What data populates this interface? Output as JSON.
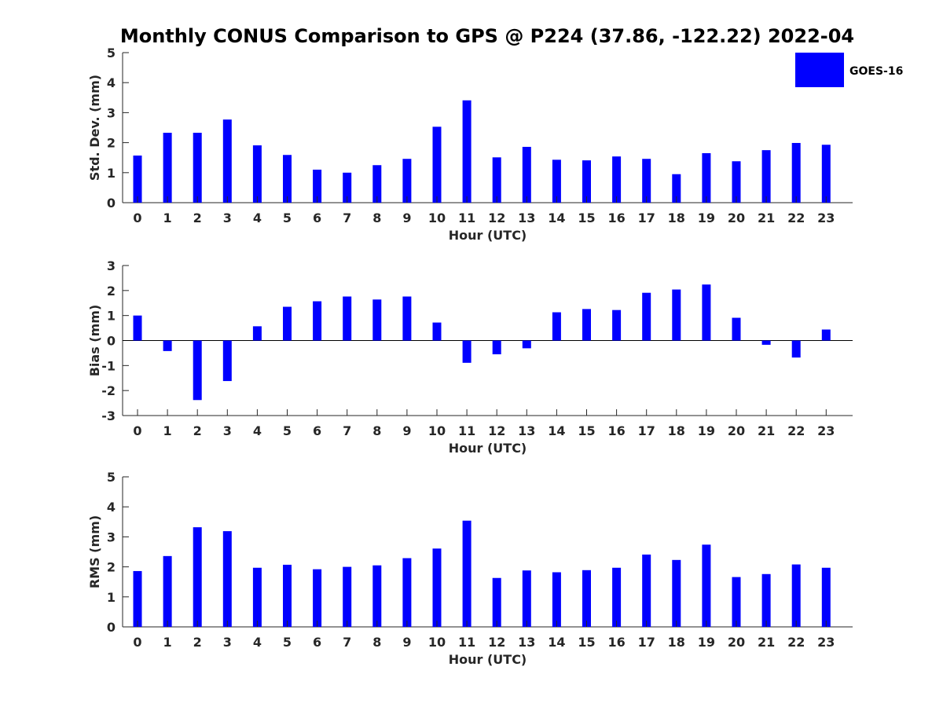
{
  "chart_data": {
    "title": "Monthly CONUS Comparison to GPS @ P224 (37.86, -122.22) 2022-04",
    "legend": {
      "label": "GOES-16",
      "color": "#0000ff",
      "placement": "top-right"
    },
    "subplots": [
      {
        "type": "bar",
        "xlabel": "Hour (UTC)",
        "ylabel": "Std. Dev. (mm)",
        "ylim": [
          0,
          5
        ],
        "yticks": [
          "0",
          "1",
          "2",
          "3",
          "4",
          "5"
        ],
        "categories": [
          "0",
          "1",
          "2",
          "3",
          "4",
          "5",
          "6",
          "7",
          "8",
          "9",
          "10",
          "11",
          "12",
          "13",
          "14",
          "15",
          "16",
          "17",
          "18",
          "19",
          "20",
          "21",
          "22",
          "23"
        ],
        "values": [
          1.57,
          2.33,
          2.33,
          2.77,
          1.91,
          1.59,
          1.1,
          1.0,
          1.25,
          1.46,
          2.53,
          3.41,
          1.51,
          1.86,
          1.43,
          1.41,
          1.54,
          1.46,
          0.95,
          1.65,
          1.38,
          1.75,
          1.99,
          1.93
        ]
      },
      {
        "type": "bar",
        "xlabel": "Hour (UTC)",
        "ylabel": "Bias (mm)",
        "ylim": [
          -3,
          3
        ],
        "yticks": [
          "-3",
          "-2",
          "-1",
          "0",
          "1",
          "2",
          "3"
        ],
        "categories": [
          "0",
          "1",
          "2",
          "3",
          "4",
          "5",
          "6",
          "7",
          "8",
          "9",
          "10",
          "11",
          "12",
          "13",
          "14",
          "15",
          "16",
          "17",
          "18",
          "19",
          "20",
          "21",
          "22",
          "23"
        ],
        "values": [
          1.0,
          -0.42,
          -2.38,
          -1.62,
          0.57,
          1.35,
          1.57,
          1.76,
          1.64,
          1.76,
          0.72,
          -0.89,
          -0.55,
          -0.31,
          1.13,
          1.26,
          1.22,
          1.91,
          2.04,
          2.24,
          0.91,
          -0.17,
          -0.68,
          0.44
        ]
      },
      {
        "type": "bar",
        "xlabel": "Hour (UTC)",
        "ylabel": "RMS (mm)",
        "ylim": [
          0,
          5
        ],
        "yticks": [
          "0",
          "1",
          "2",
          "3",
          "4",
          "5"
        ],
        "categories": [
          "0",
          "1",
          "2",
          "3",
          "4",
          "5",
          "6",
          "7",
          "8",
          "9",
          "10",
          "11",
          "12",
          "13",
          "14",
          "15",
          "16",
          "17",
          "18",
          "19",
          "20",
          "21",
          "22",
          "23"
        ],
        "values": [
          1.86,
          2.36,
          3.32,
          3.19,
          1.97,
          2.07,
          1.92,
          2.0,
          2.05,
          2.29,
          2.61,
          3.54,
          1.63,
          1.88,
          1.82,
          1.89,
          1.97,
          2.41,
          2.23,
          2.74,
          1.66,
          1.76,
          2.08,
          1.97
        ]
      }
    ]
  }
}
